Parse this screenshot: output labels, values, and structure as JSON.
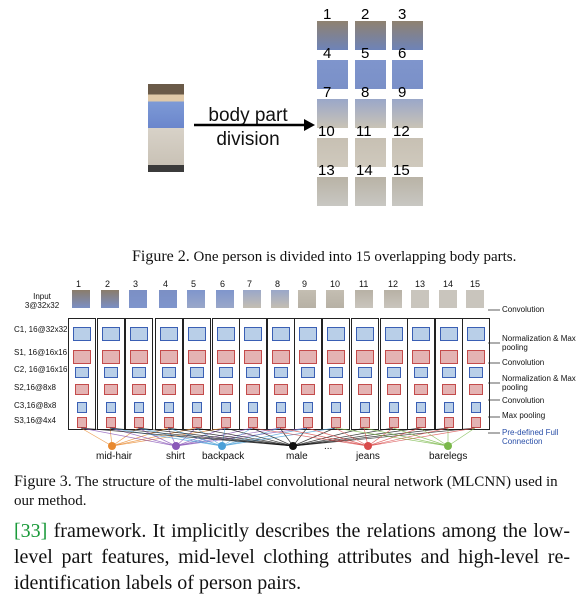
{
  "fig2": {
    "division_line1": "body part",
    "division_line2": "division",
    "part_numbers": [
      "1",
      "2",
      "3",
      "4",
      "5",
      "6",
      "7",
      "8",
      "9",
      "10",
      "11",
      "12",
      "13",
      "14",
      "15"
    ],
    "caption_label": "Figure 2.",
    "caption_text": "One person is divided into 15 overlapping body parts."
  },
  "fig3": {
    "input_line1": "Input",
    "input_line2": "3@32x32",
    "column_numbers": [
      "1",
      "2",
      "3",
      "4",
      "5",
      "6",
      "7",
      "8",
      "9",
      "10",
      "11",
      "12",
      "13",
      "14",
      "15"
    ],
    "layers": [
      "C1, 16@32x32",
      "S1, 16@16x16",
      "C2, 16@16x16",
      "S2,16@8x8",
      "C3,16@8x8",
      "S3,16@4x4"
    ],
    "right_labels": [
      "Convolution",
      "Normalization & Max pooling",
      "Convolution",
      "Normalization & Max pooling",
      "Convolution",
      "Max pooling",
      "Pre-defined Full Connection"
    ],
    "attributes": [
      "mid-hair",
      "shirt",
      "backpack",
      "male",
      "...",
      "jeans",
      "barelegs"
    ],
    "attribute_colors": [
      "#e8892f",
      "#8a58b8",
      "#4aa0d8",
      "#111111",
      "#ffffff",
      "#d84a4a",
      "#7ab84a"
    ],
    "caption_label": "Figure 3.",
    "caption_text": "The structure of the multi-label convolutional neural network (MLCNN) used in our method."
  },
  "paragraph": {
    "ref": "[33]",
    "text": " framework. It implicitly describes the relations among the low-level part features, mid-level clothing attributes and high-level re-identification labels of person pairs."
  }
}
